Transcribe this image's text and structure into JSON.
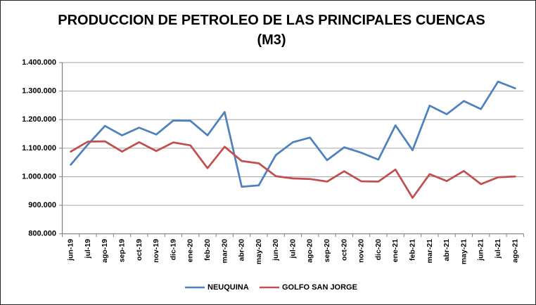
{
  "window": {
    "background": "#ffffff",
    "border_color": "#262626"
  },
  "chart_data": {
    "type": "line",
    "title_lines": [
      "PRODUCCION DE PETROLEO DE LAS PRINCIPALES CUENCAS",
      "(M3)"
    ],
    "categories": [
      "jun-19",
      "jul-19",
      "ago-19",
      "sep-19",
      "oct-19",
      "nov-19",
      "dic-19",
      "ene-20",
      "feb-20",
      "mar-20",
      "abr-20",
      "may-20",
      "jun-20",
      "jul-20",
      "ago-20",
      "sep-20",
      "oct-20",
      "nov-20",
      "dic-20",
      "ene-21",
      "feb-21",
      "mar-21",
      "abr-21",
      "may-21",
      "jun-21",
      "jul-21",
      "ago-21"
    ],
    "series": [
      {
        "name": "NEUQUINA",
        "color": "#4F81BD",
        "values": [
          1042000,
          1113000,
          1178000,
          1145000,
          1172000,
          1148000,
          1197000,
          1196000,
          1145000,
          1227000,
          965000,
          970000,
          1076000,
          1121000,
          1137000,
          1058000,
          1103000,
          1084000,
          1060000,
          1180000,
          1093000,
          1249000,
          1219000,
          1265000,
          1237000,
          1333000,
          1310000
        ]
      },
      {
        "name": "GOLFO SAN JORGE",
        "color": "#C0504D",
        "values": [
          1088000,
          1123000,
          1124000,
          1088000,
          1121000,
          1090000,
          1120000,
          1110000,
          1030000,
          1105000,
          1055000,
          1047000,
          1002000,
          994000,
          992000,
          983000,
          1019000,
          984000,
          983000,
          1025000,
          926000,
          1009000,
          985000,
          1020000,
          974000,
          998000,
          1001000
        ]
      }
    ],
    "ylim": [
      800000,
      1400000
    ],
    "y_tick_labels": [
      "1.400.000",
      "1.300.000",
      "1.200.000",
      "1.100.000",
      "1.000.000",
      "900.000",
      "800.000"
    ],
    "grid": "horizontal",
    "legend_position": "bottom-center",
    "gridline_color": "#A6A6A6",
    "axis_color": "#808080",
    "text_color": "#000000"
  }
}
